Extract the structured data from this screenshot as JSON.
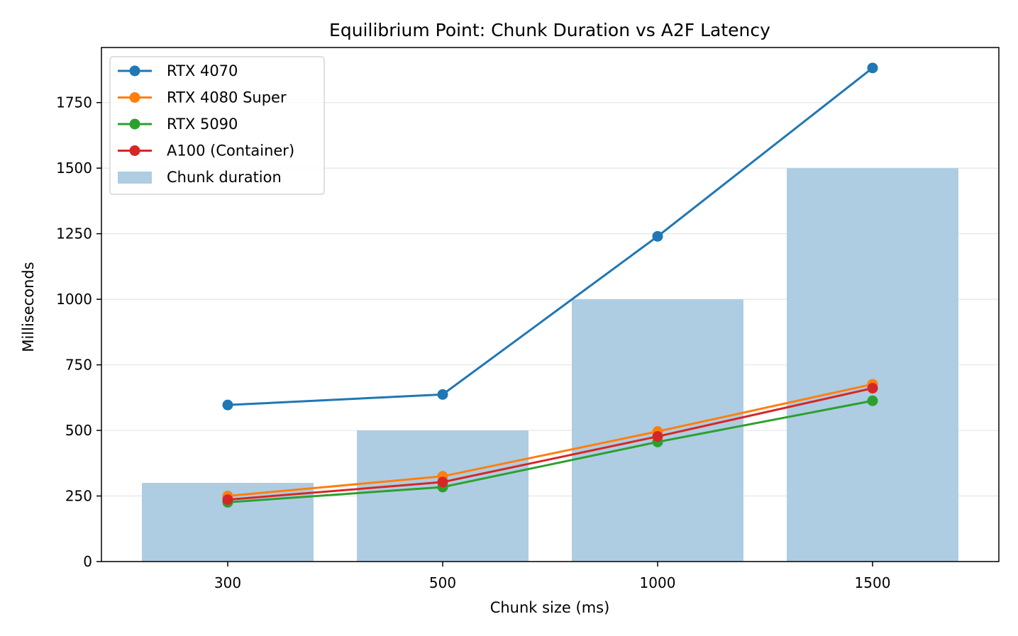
{
  "chart_data": {
    "type": "line",
    "title": "Equilibrium Point: Chunk Duration vs A2F Latency",
    "xlabel": "Chunk size (ms)",
    "ylabel": "Milliseconds",
    "categories": [
      "300",
      "500",
      "1000",
      "1500"
    ],
    "yticks": [
      "0",
      "250",
      "500",
      "750",
      "1000",
      "1250",
      "1500",
      "1750"
    ],
    "ylim": [
      0,
      1960
    ],
    "grid": "horizontal",
    "legend_position": "top-left",
    "bars": {
      "name": "Chunk duration",
      "values": [
        300,
        500,
        1000,
        1500
      ],
      "color": "#aecde2"
    },
    "series": [
      {
        "name": "RTX 4070",
        "values": [
          597,
          637,
          1240,
          1882
        ],
        "color": "#1f77b4"
      },
      {
        "name": "RTX 4080 Super",
        "values": [
          250,
          325,
          496,
          676
        ],
        "color": "#ff7f0e"
      },
      {
        "name": "RTX 5090",
        "values": [
          226,
          284,
          456,
          613
        ],
        "color": "#2ca02c"
      },
      {
        "name": "A100 (Container)",
        "values": [
          236,
          303,
          477,
          661
        ],
        "color": "#d62728"
      }
    ]
  }
}
